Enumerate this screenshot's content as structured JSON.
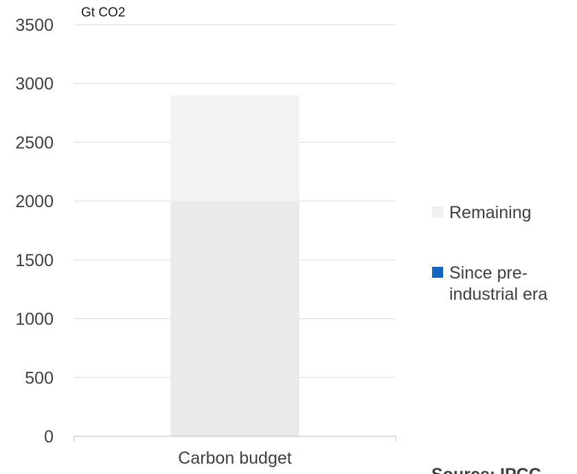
{
  "chart_data": {
    "type": "bar",
    "stacked": true,
    "categories": [
      "Carbon budget"
    ],
    "series": [
      {
        "name": "Since pre-industrial era",
        "legend_lines": [
          "Since pre-",
          "industrial era"
        ],
        "values": [
          2000
        ],
        "color": "#e9eaec",
        "legend_color": "#1565c0"
      },
      {
        "name": "Remaining",
        "legend_lines": [
          "Remaining"
        ],
        "values": [
          900
        ],
        "color": "#f1f2f4",
        "legend_color": "#eeeff1"
      }
    ],
    "unit_label": "Gt CO2",
    "ylim": [
      0,
      3500
    ],
    "yticks": [
      0,
      500,
      1000,
      1500,
      2000,
      2500,
      3000,
      3500
    ],
    "grid": true,
    "legend_position": "right",
    "source": "Source: IPCC"
  }
}
